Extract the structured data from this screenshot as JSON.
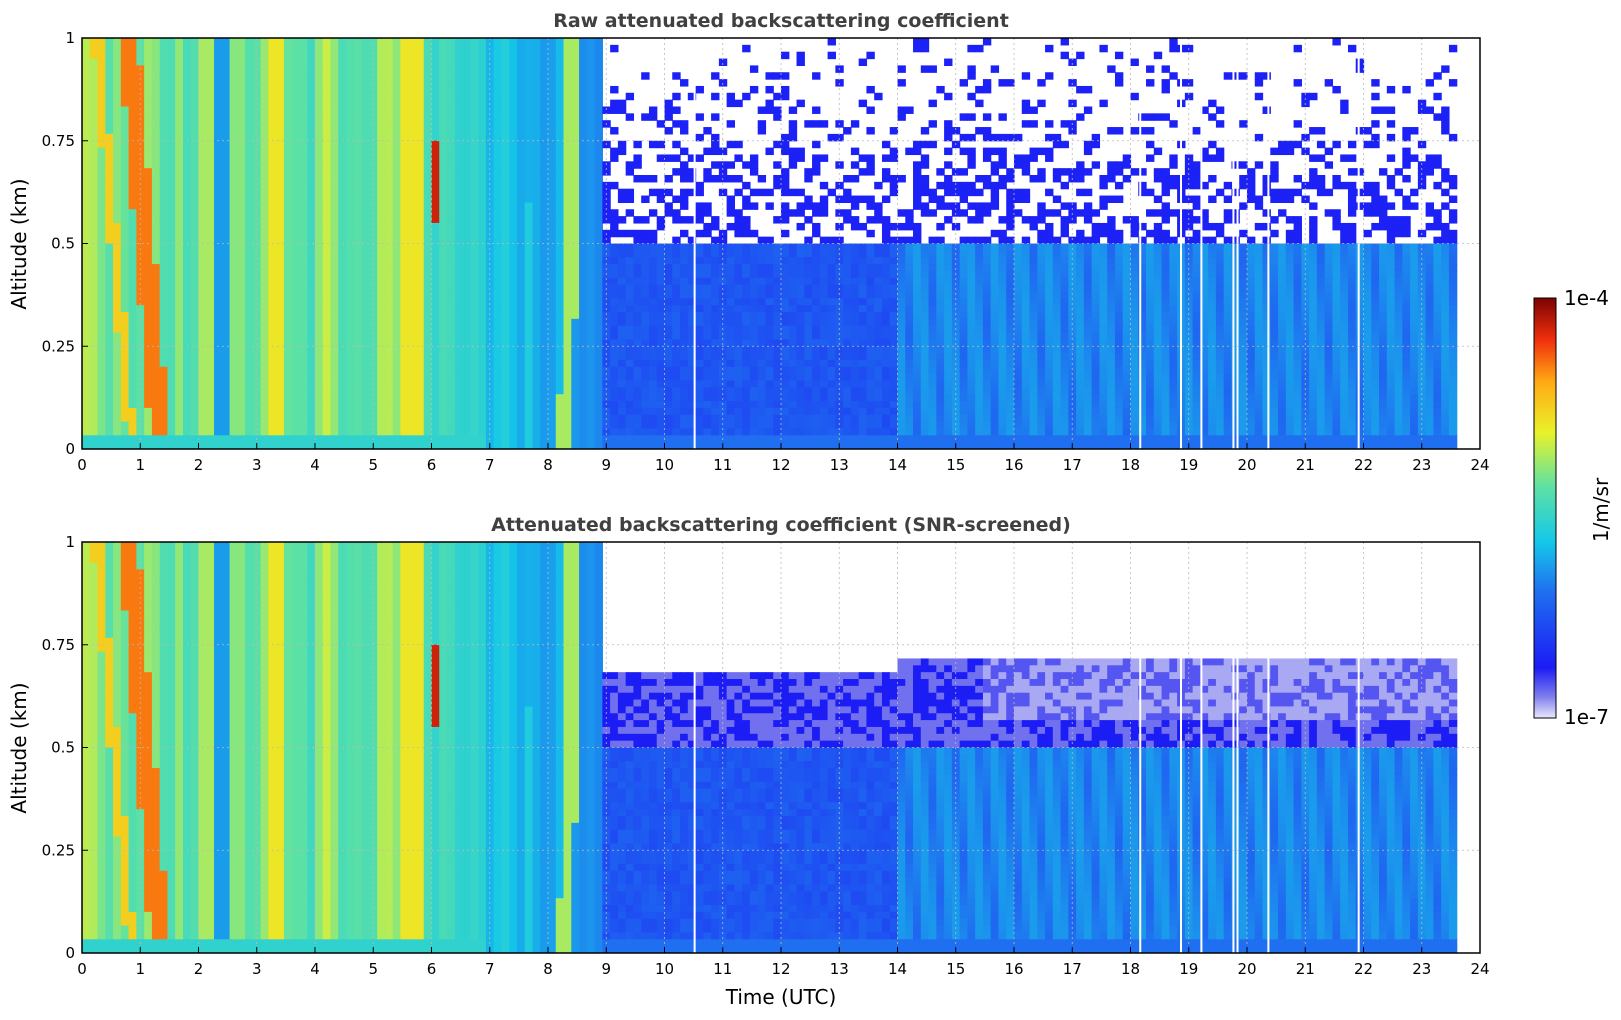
{
  "chart_data": [
    {
      "type": "heatmap",
      "title": "Raw attenuated backscattering coefficient",
      "xlabel": "",
      "ylabel": "Altitude (km)",
      "xlim": [
        0,
        24
      ],
      "ylim": [
        0,
        1
      ],
      "x_ticks": [
        "0",
        "1",
        "2",
        "3",
        "4",
        "5",
        "6",
        "7",
        "8",
        "9",
        "10",
        "11",
        "12",
        "13",
        "14",
        "15",
        "16",
        "17",
        "18",
        "19",
        "20",
        "21",
        "22",
        "23",
        "24"
      ],
      "y_ticks": [
        "0",
        "0.25",
        "0.5",
        "0.75",
        "1"
      ],
      "grid": true,
      "data_end_hour": 23.6,
      "description_segments": [
        {
          "from": 0,
          "to": 7,
          "level": "high (1e-5 to 1e-4)"
        },
        {
          "from": 7,
          "to": 9,
          "level": "moderate, decreasing"
        },
        {
          "from": 9,
          "to": 23.6,
          "level": "low (~1e-6) below 0.5 km, noisy above"
        }
      ]
    },
    {
      "type": "heatmap",
      "title": "Attenuated backscattering coefficient (SNR-screened)",
      "xlabel": "Time (UTC)",
      "ylabel": "Altitude (km)",
      "xlim": [
        0,
        24
      ],
      "ylim": [
        0,
        1
      ],
      "x_ticks": [
        "0",
        "1",
        "2",
        "3",
        "4",
        "5",
        "6",
        "7",
        "8",
        "9",
        "10",
        "11",
        "12",
        "13",
        "14",
        "15",
        "16",
        "17",
        "18",
        "19",
        "20",
        "21",
        "22",
        "23",
        "24"
      ],
      "y_ticks": [
        "0",
        "0.25",
        "0.5",
        "0.75",
        "1"
      ],
      "grid": true,
      "data_end_hour": 23.6
    }
  ],
  "colorbar": {
    "label": "1/m/sr",
    "max_label": "1e-4",
    "min_label": "1e-7",
    "colormap": "jet-like"
  },
  "colors": {
    "low": "#1a33e6",
    "mid": "#19c0e0",
    "high": "#f7e52a",
    "peak": "#e8300f"
  }
}
